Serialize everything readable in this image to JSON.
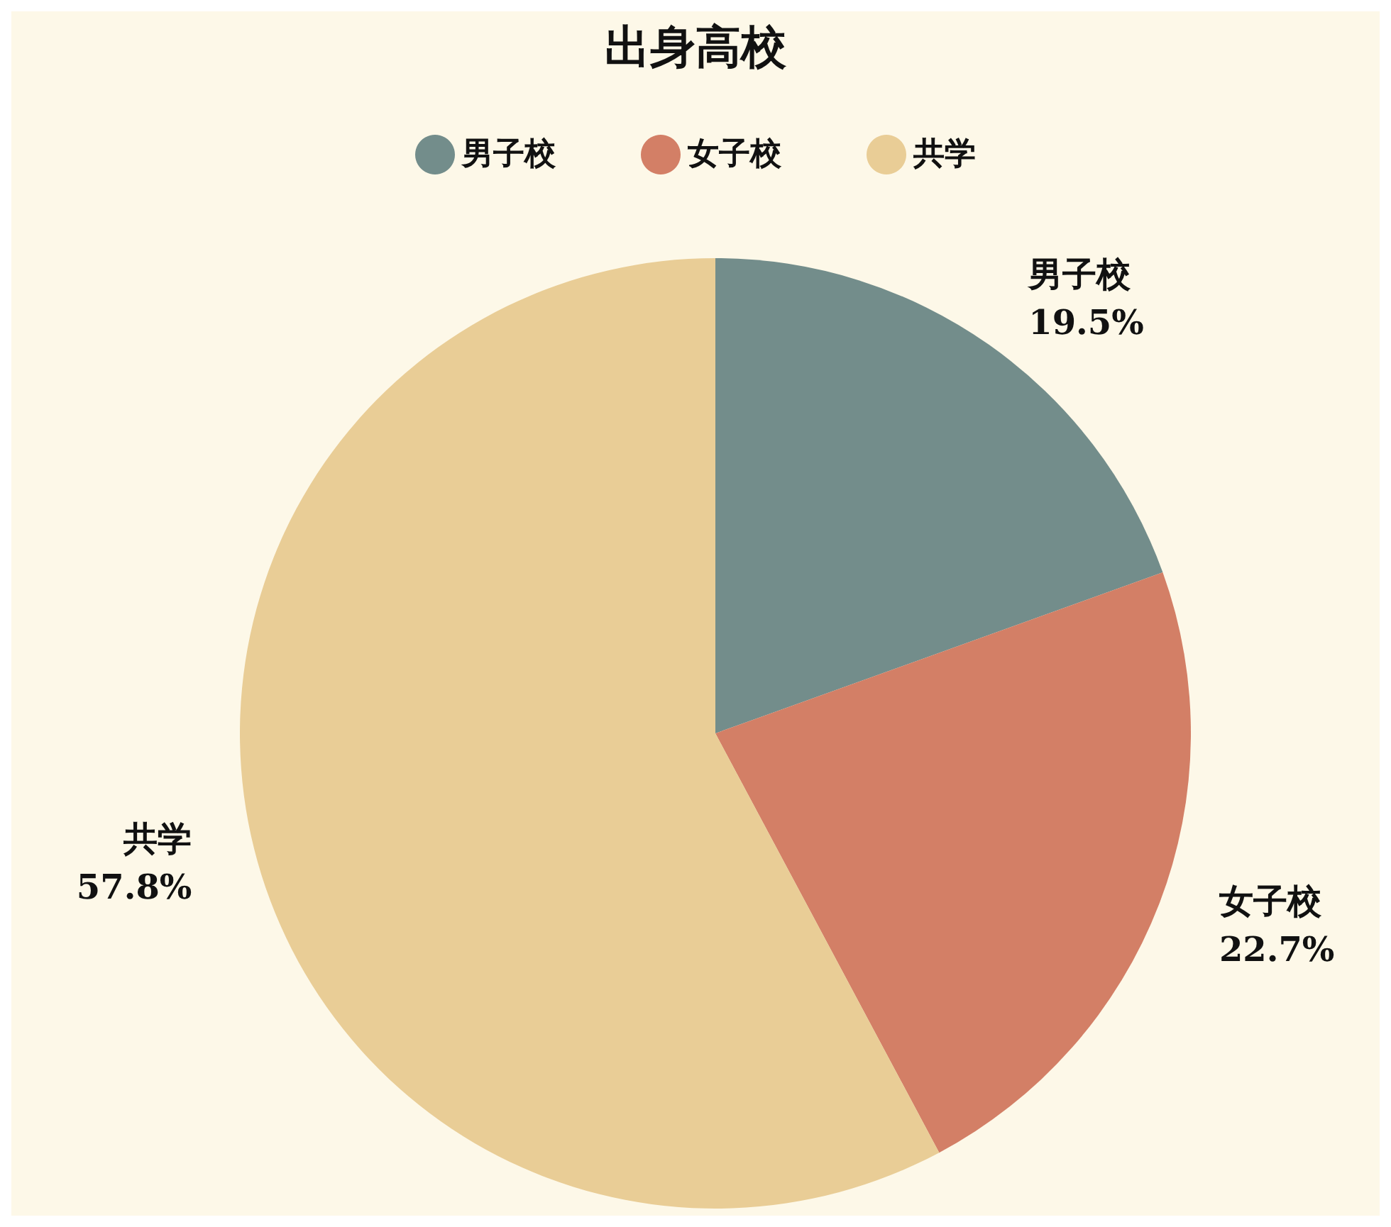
{
  "chart_data": {
    "type": "pie",
    "title": "出身高校",
    "categories": [
      "男子校",
      "女子校",
      "共学"
    ],
    "values": [
      19.5,
      22.7,
      57.8
    ],
    "colors": [
      "#738d8b",
      "#d37f66",
      "#e9cd96"
    ],
    "value_labels": [
      "19.5%",
      "22.7%",
      "57.8%"
    ],
    "legend": "top"
  }
}
